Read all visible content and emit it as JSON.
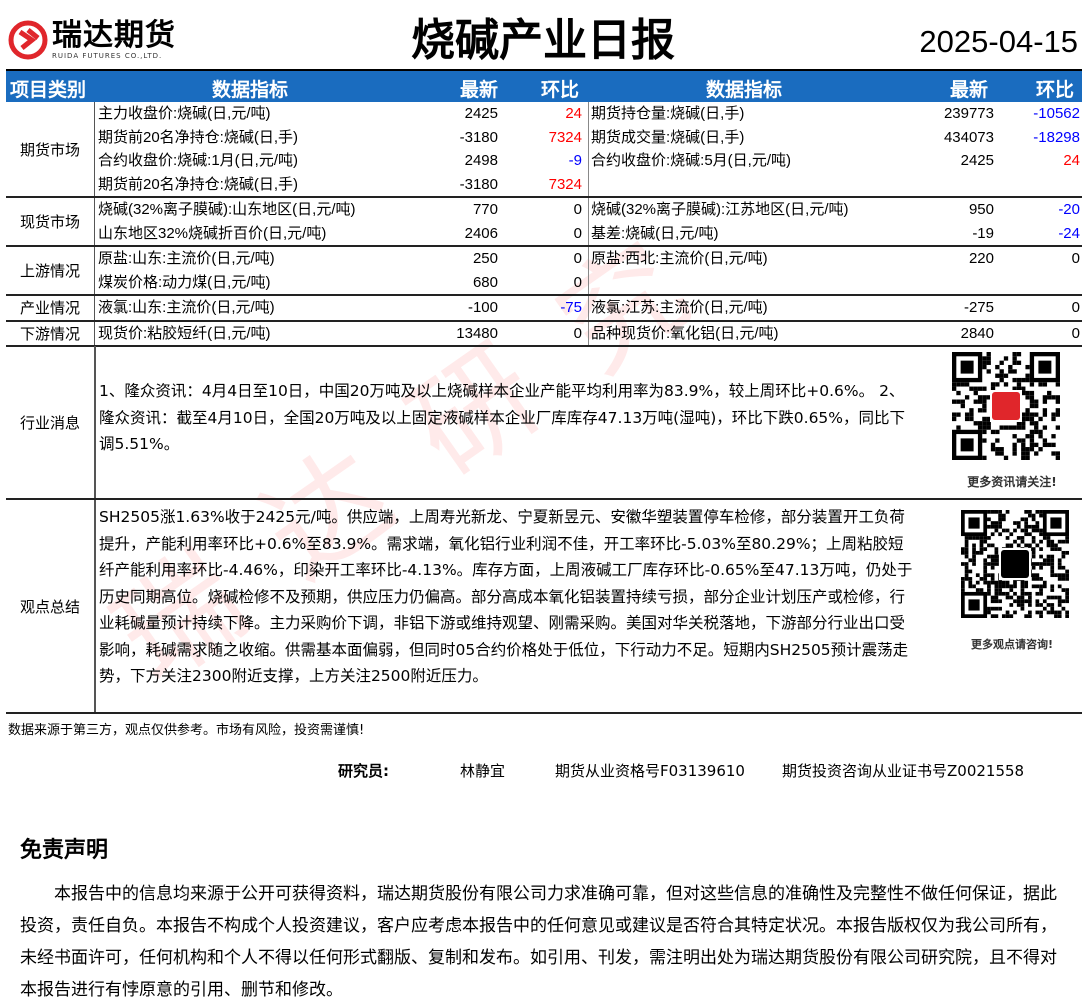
{
  "header": {
    "logo_text": "瑞达期货",
    "logo_sub": "RUIDA FUTURES CO.,LTD.",
    "title": "烧碱产业日报",
    "date": "2025-04-15",
    "brand_color": "#e0262b"
  },
  "table_header": {
    "category": "项目类别",
    "indicator": "数据指标",
    "latest": "最新",
    "change": "环比",
    "indicator2": "数据指标",
    "latest2": "最新",
    "change2": "环比",
    "bg_color": "#1a6cbf"
  },
  "sections": [
    {
      "category": "期货市场",
      "rows": [
        {
          "l": [
            "主力收盘价:烧碱(日,元/吨)",
            "2425",
            "24"
          ],
          "r": [
            "期货持仓量:烧碱(日,手)",
            "239773",
            "-10562"
          ]
        },
        {
          "l": [
            "期货前20名净持仓:烧碱(日,手)",
            "-3180",
            "7324"
          ],
          "r": [
            "期货成交量:烧碱(日,手)",
            "434073",
            "-18298"
          ]
        },
        {
          "l": [
            "合约收盘价:烧碱:1月(日,元/吨)",
            "2498",
            "-9"
          ],
          "r": [
            "合约收盘价:烧碱:5月(日,元/吨)",
            "2425",
            "24"
          ]
        },
        {
          "l": [
            "期货前20名净持仓:烧碱(日,手)",
            "-3180",
            "7324"
          ],
          "r": [
            "",
            "",
            ""
          ]
        }
      ]
    },
    {
      "category": "现货市场",
      "rows": [
        {
          "l": [
            "烧碱(32%离子膜碱):山东地区(日,元/吨)",
            "770",
            "0"
          ],
          "r": [
            "烧碱(32%离子膜碱):江苏地区(日,元/吨)",
            "950",
            "-20"
          ]
        },
        {
          "l": [
            "山东地区32%烧碱折百价(日,元/吨)",
            "2406",
            "0"
          ],
          "r": [
            "基差:烧碱(日,元/吨)",
            "-19",
            "-24"
          ]
        }
      ]
    },
    {
      "category": "上游情况",
      "rows": [
        {
          "l": [
            "原盐:山东:主流价(日,元/吨)",
            "250",
            "0"
          ],
          "r": [
            "原盐:西北:主流价(日,元/吨)",
            "220",
            "0"
          ]
        },
        {
          "l": [
            "煤炭价格:动力煤(日,元/吨)",
            "680",
            "0"
          ],
          "r": [
            "",
            "",
            ""
          ]
        }
      ]
    },
    {
      "category": "产业情况",
      "rows": [
        {
          "l": [
            "液氯:山东:主流价(日,元/吨)",
            "-100",
            "-75"
          ],
          "r": [
            "液氯:江苏:主流价(日,元/吨)",
            "-275",
            "0"
          ]
        }
      ]
    },
    {
      "category": "下游情况",
      "rows": [
        {
          "l": [
            "现货价:粘胶短纤(日,元/吨)",
            "13480",
            "0"
          ],
          "r": [
            "品种现货价:氧化铝(日,元/吨)",
            "2840",
            "0"
          ]
        }
      ]
    }
  ],
  "colors": {
    "up": "#ff0000",
    "down": "#0000ff"
  },
  "news": {
    "category": "行业消息",
    "text": "1、隆众资讯：4月4日至10日，中国20万吨及以上烧碱样本企业产能平均利用率为83.9%，较上周环比+0.6%。 2、隆众资讯：截至4月10日，全国20万吨及以上固定液碱样本企业厂库库存47.13万吨(湿吨)，环比下跌0.65%，同比下调5.51%。",
    "qr_caption": "更多资讯请关注!"
  },
  "view": {
    "category": "观点总结",
    "text": "SH2505涨1.63%收于2425元/吨。供应端，上周寿光新龙、宁夏新昱元、安徽华塑装置停车检修，部分装置开工负荷提升，产能利用率环比+0.6%至83.9%。需求端，氧化铝行业利润不佳，开工率环比-5.03%至80.29%；上周粘胶短纤产能利用率环比-4.46%，印染开工率环比-4.13%。库存方面，上周液碱工厂库存环比-0.65%至47.13万吨，仍处于历史同期高位。烧碱检修不及预期，供应压力仍偏高。部分高成本氧化铝装置持续亏损，部分企业计划压产或检修，行业耗碱量预计持续下降。主力采购价下调，非铝下游或维持观望、刚需采购。美国对华关税落地，下游部分行业出口受影响，耗碱需求随之收缩。供需基本面偏弱，但同时05合约价格处于低位，下行动力不足。短期内SH2505预计震荡走势，下方关注2300附近支撑，上方关注2500附近压力。",
    "qr_caption": "更多观点请咨询!"
  },
  "source_note": "数据来源于第三方，观点仅供参考。市场有风险，投资需谨慎!",
  "researcher": {
    "label": "研究员:",
    "name": "林静宜",
    "qual": "期货从业资格号F03139610",
    "cert": "期货投资咨询从业证书号Z0021558"
  },
  "disclaimer": {
    "title": "免责声明",
    "text": "本报告中的信息均来源于公开可获得资料，瑞达期货股份有限公司力求准确可靠，但对这些信息的准确性及完整性不做任何保证，据此投资，责任自负。本报告不构成个人投资建议，客户应考虑本报告中的任何意见或建议是否符合其特定状况。本报告版权仅为我公司所有，未经书面许可，任何机构和个人不得以任何形式翻版、复制和发布。如引用、刊发，需注明出处为瑞达期货股份有限公司研究院，且不得对本报告进行有悖原意的引用、删节和修改。"
  },
  "watermark": "瑞达研究"
}
